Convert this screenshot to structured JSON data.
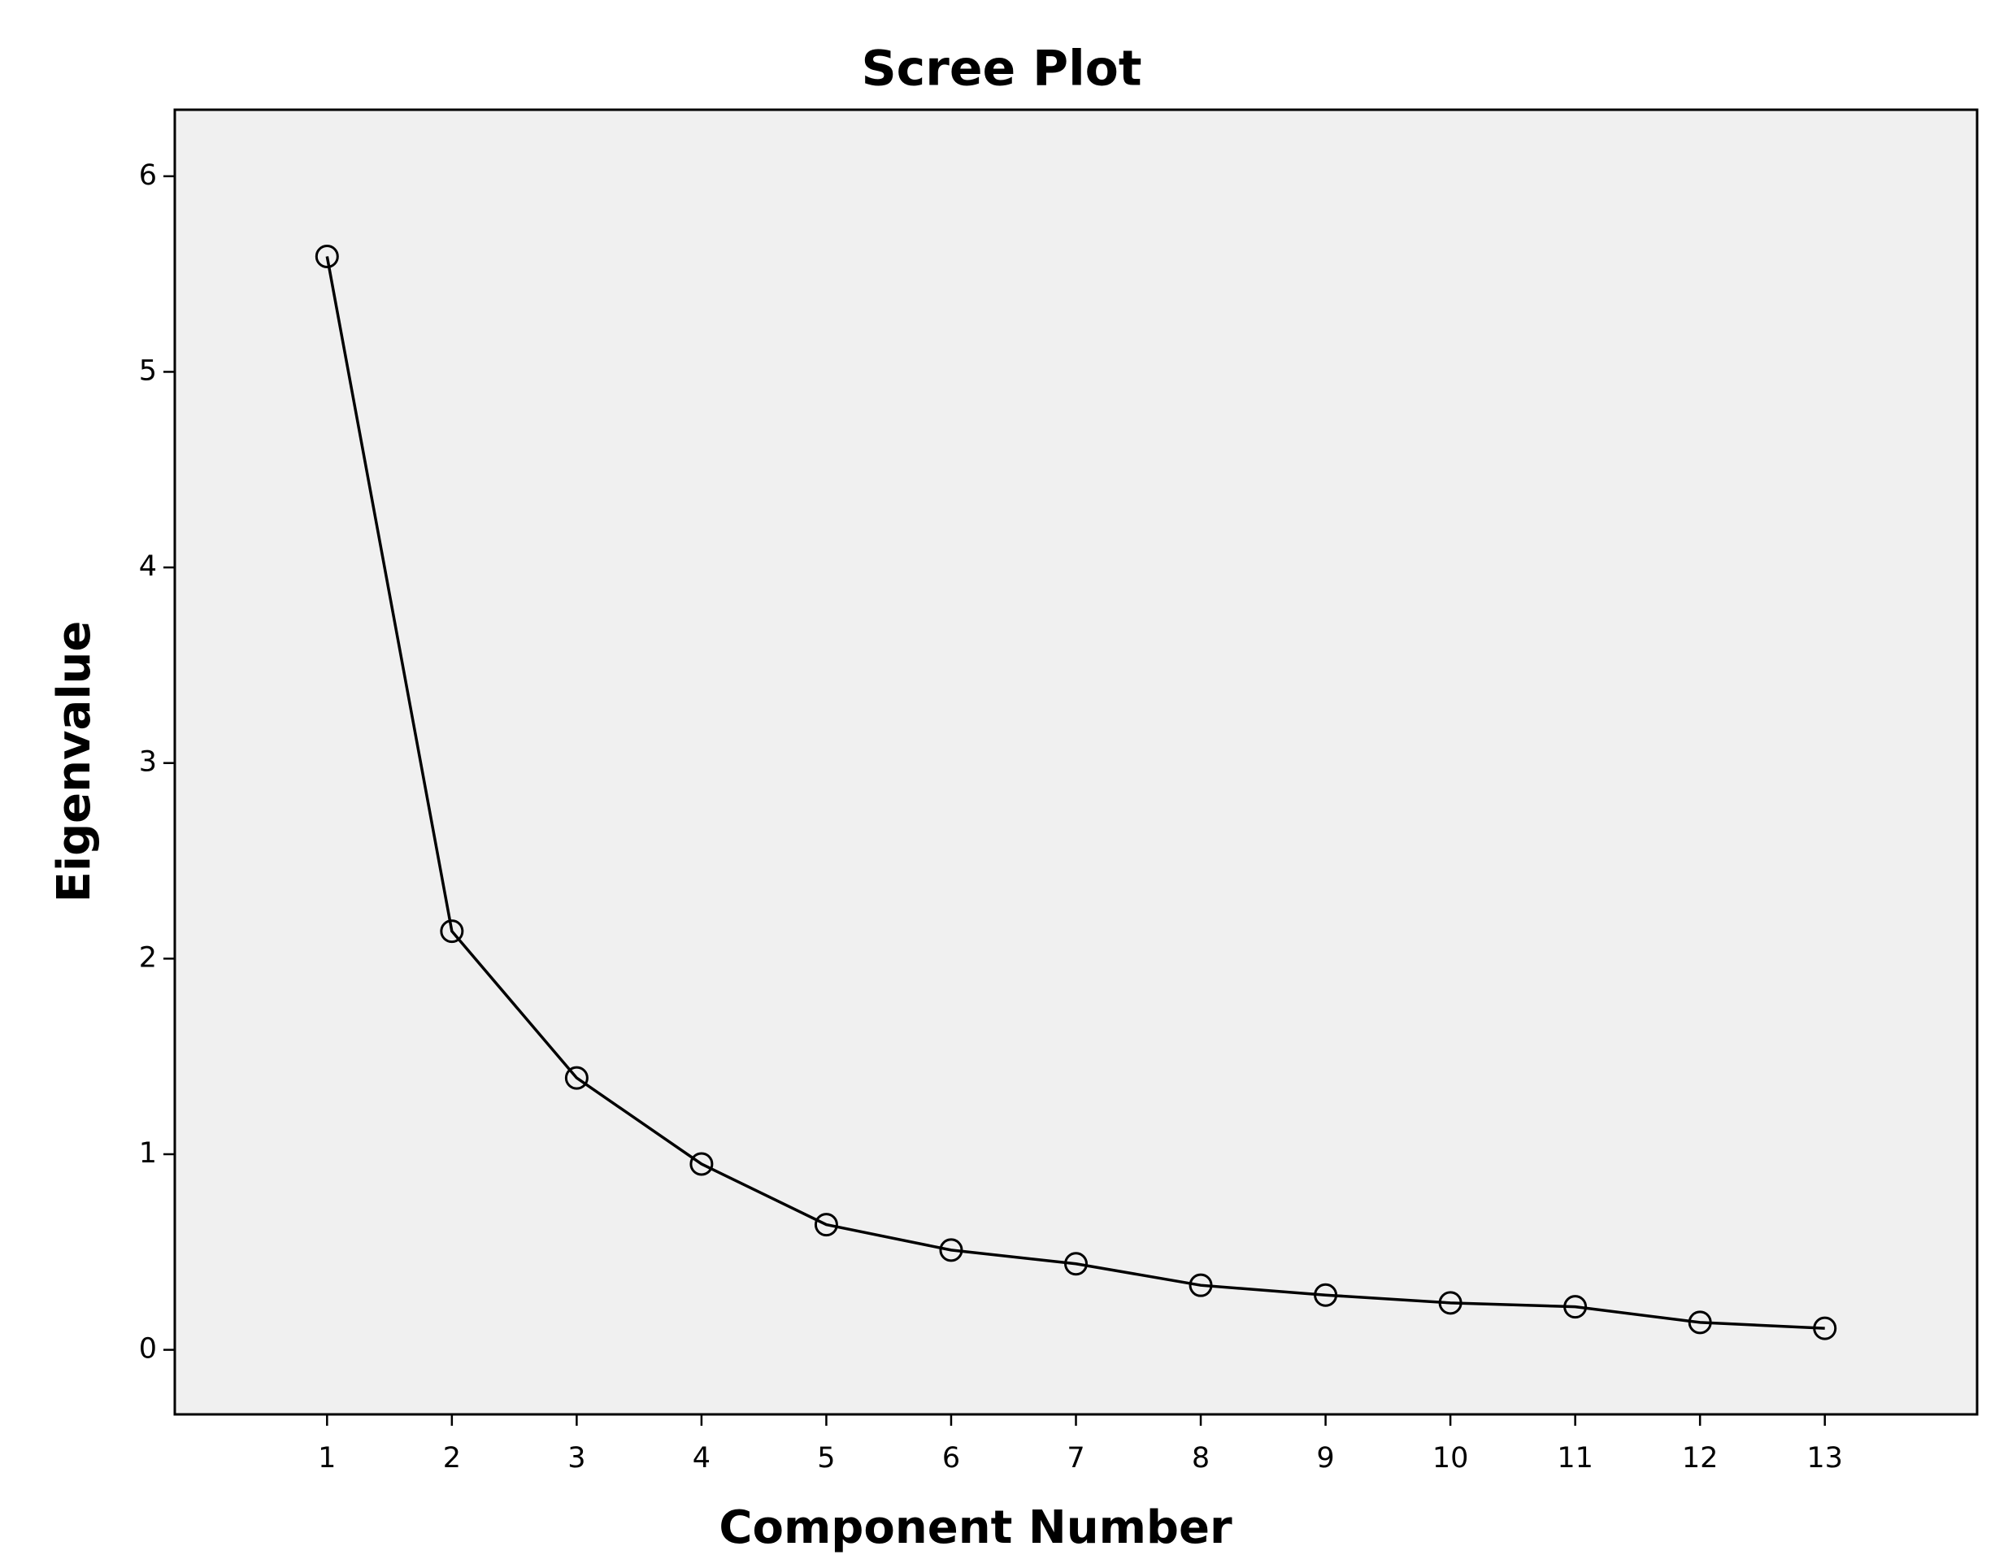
{
  "chart_data": {
    "type": "line",
    "title": "Scree Plot",
    "x_label": "Component Number",
    "y_label": "Eigenvalue",
    "x": [
      1,
      2,
      3,
      4,
      5,
      6,
      7,
      8,
      9,
      10,
      11,
      12,
      13
    ],
    "values": [
      5.59,
      2.14,
      1.39,
      0.95,
      0.64,
      0.51,
      0.44,
      0.33,
      0.28,
      0.24,
      0.22,
      0.14,
      0.11
    ],
    "color": "#000000",
    "background": "#f0f0f0",
    "xlim": [
      -0.22,
      14.22
    ],
    "xticks": [
      1,
      2,
      3,
      4,
      5,
      6,
      7,
      8,
      9,
      10,
      11,
      12,
      13
    ],
    "ylim": [
      -0.33,
      6.34
    ],
    "yticks": [
      0,
      1,
      2,
      3,
      4,
      5,
      6
    ],
    "grid": false
  }
}
